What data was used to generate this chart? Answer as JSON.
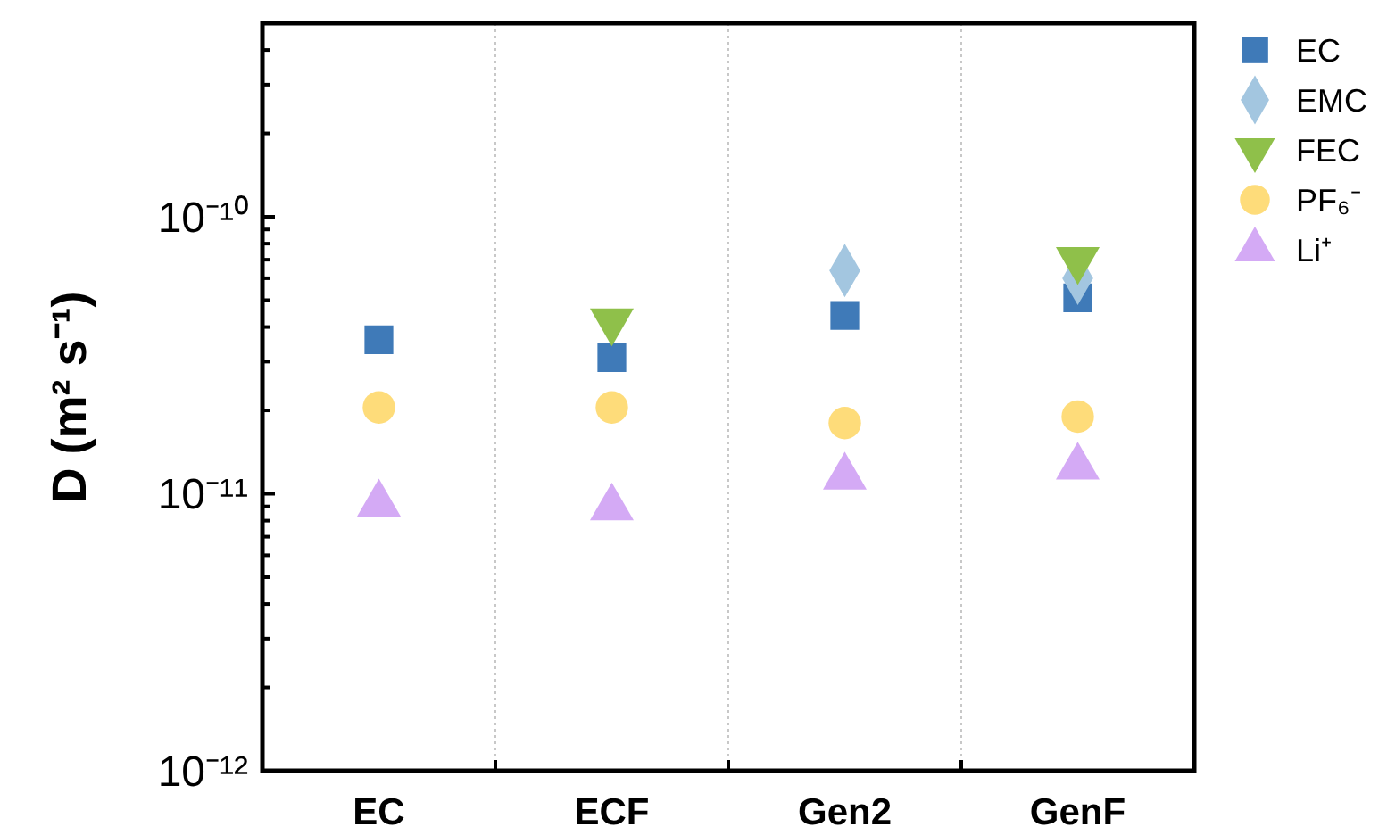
{
  "chart_data": {
    "type": "scatter",
    "ylabel": "D (m² s⁻¹)",
    "categories": [
      "EC",
      "ECF",
      "Gen2",
      "GenF"
    ],
    "log": "y",
    "ylim": [
      1e-12,
      5e-10
    ],
    "yticks": [
      {
        "value": 1e-12,
        "label": "10⁻¹²"
      },
      {
        "value": 2e-12,
        "label": null
      },
      {
        "value": 3e-12,
        "label": null
      },
      {
        "value": 4e-12,
        "label": null
      },
      {
        "value": 5e-12,
        "label": null
      },
      {
        "value": 6e-12,
        "label": null
      },
      {
        "value": 7e-12,
        "label": null
      },
      {
        "value": 8e-12,
        "label": null
      },
      {
        "value": 9e-12,
        "label": null
      },
      {
        "value": 1e-11,
        "label": "10⁻¹¹"
      },
      {
        "value": 2e-11,
        "label": null
      },
      {
        "value": 3e-11,
        "label": null
      },
      {
        "value": 4e-11,
        "label": null
      },
      {
        "value": 5e-11,
        "label": null
      },
      {
        "value": 6e-11,
        "label": null
      },
      {
        "value": 7e-11,
        "label": null
      },
      {
        "value": 8e-11,
        "label": null
      },
      {
        "value": 9e-11,
        "label": null
      },
      {
        "value": 1e-10,
        "label": "10⁻¹⁰"
      },
      {
        "value": 2e-10,
        "label": null
      },
      {
        "value": 3e-10,
        "label": null
      },
      {
        "value": 4e-10,
        "label": null
      }
    ],
    "grid": "x",
    "legend": "top right",
    "series": [
      {
        "name": "EC",
        "color": "#3f7ab8",
        "marker": "square",
        "values": [
          3.6e-11,
          3.1e-11,
          4.4e-11,
          5.1e-11
        ]
      },
      {
        "name": "EMC",
        "color": "#a3c6e0",
        "marker": "diamond",
        "values": [
          null,
          null,
          6.4e-11,
          6e-11
        ]
      },
      {
        "name": "FEC",
        "color": "#8fc04a",
        "marker": "triangle-down",
        "values": [
          null,
          4.2e-11,
          null,
          7e-11
        ]
      },
      {
        "name": "PF₆⁻",
        "color": "#fedc7a",
        "marker": "circle",
        "values": [
          2.05e-11,
          2.05e-11,
          1.8e-11,
          1.9e-11
        ]
      },
      {
        "name": "Li⁺",
        "color": "#d4aaf5",
        "marker": "triangle",
        "values": [
          9.2e-12,
          8.9e-12,
          1.15e-11,
          1.25e-11
        ]
      }
    ]
  }
}
